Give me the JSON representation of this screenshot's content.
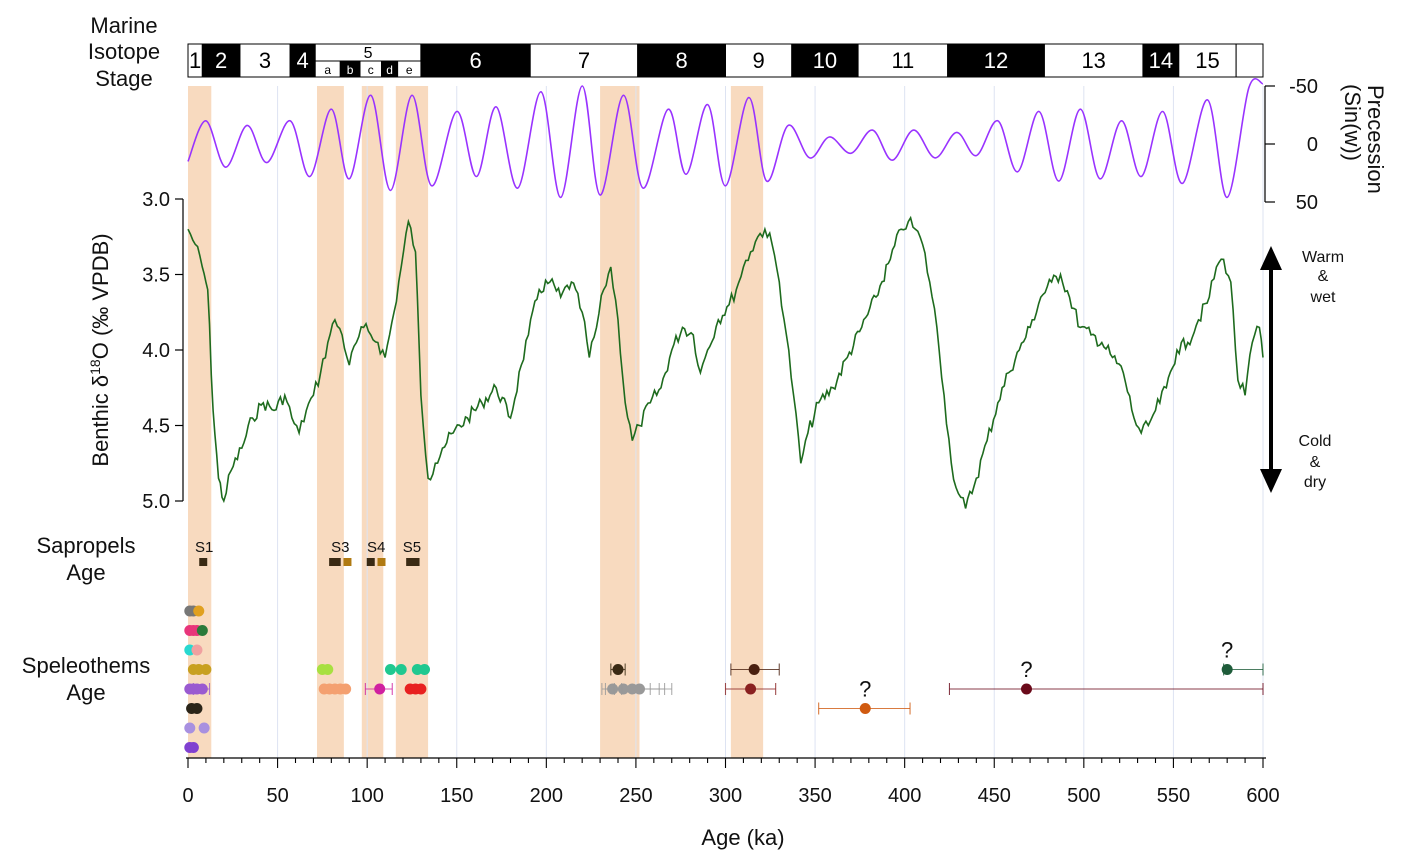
{
  "chart_data": {
    "type": "line",
    "x_axis": {
      "label": "Age (ka)",
      "range": [
        0,
        600
      ],
      "ticks": [
        0,
        50,
        100,
        150,
        200,
        250,
        300,
        350,
        400,
        450,
        500,
        550,
        600
      ],
      "tick_labels": [
        "0",
        "50",
        "100",
        "150",
        "200",
        "250",
        "300",
        "350",
        "400",
        "450",
        "500",
        "550",
        "600"
      ]
    },
    "marine_isotope_stage": {
      "label_lines": [
        "Marine",
        "Isotope",
        "Stage"
      ],
      "stages": [
        {
          "label": "1",
          "start": 0,
          "end": 8,
          "warm": true
        },
        {
          "label": "2",
          "start": 8,
          "end": 29,
          "warm": false
        },
        {
          "label": "3",
          "start": 29,
          "end": 57,
          "warm": true
        },
        {
          "label": "4",
          "start": 57,
          "end": 71,
          "warm": false
        },
        {
          "label": "5",
          "start": 71,
          "end": 130,
          "warm": true
        },
        {
          "label": "6",
          "start": 130,
          "end": 191,
          "warm": false
        },
        {
          "label": "7",
          "start": 191,
          "end": 251,
          "warm": true
        },
        {
          "label": "8",
          "start": 251,
          "end": 300,
          "warm": false
        },
        {
          "label": "9",
          "start": 300,
          "end": 337,
          "warm": true
        },
        {
          "label": "10",
          "start": 337,
          "end": 374,
          "warm": false
        },
        {
          "label": "11",
          "start": 374,
          "end": 424,
          "warm": true
        },
        {
          "label": "12",
          "start": 424,
          "end": 478,
          "warm": false
        },
        {
          "label": "13",
          "start": 478,
          "end": 533,
          "warm": true
        },
        {
          "label": "14",
          "start": 533,
          "end": 553,
          "warm": false
        },
        {
          "label": "15",
          "start": 553,
          "end": 585,
          "warm": true
        }
      ],
      "substages": [
        {
          "label": "a",
          "start": 71,
          "end": 85
        },
        {
          "label": "b",
          "start": 85,
          "end": 96
        },
        {
          "label": "c",
          "start": 96,
          "end": 108
        },
        {
          "label": "d",
          "start": 108,
          "end": 117
        },
        {
          "label": "e",
          "start": 117,
          "end": 130
        }
      ]
    },
    "highlight_bands": [
      [
        0,
        13
      ],
      [
        72,
        87
      ],
      [
        97,
        109
      ],
      [
        116,
        134
      ],
      [
        230,
        252
      ],
      [
        303,
        321
      ]
    ],
    "precession": {
      "label_lines": [
        "Precession",
        "(Sin(w))"
      ],
      "range": [
        -50,
        50
      ],
      "ticks": [
        -50,
        0,
        50
      ],
      "tick_labels": [
        "-50",
        "0",
        "50"
      ],
      "color": "#9933ff",
      "x": [
        0,
        10,
        21,
        33,
        44,
        57,
        68,
        80,
        90,
        102,
        113,
        125,
        136,
        150,
        161,
        172,
        184,
        197,
        208,
        220,
        230,
        243,
        254,
        268,
        278,
        290,
        300,
        313,
        323,
        335,
        347,
        358,
        370,
        382,
        393,
        405,
        417,
        429,
        440,
        452,
        463,
        475,
        486,
        498,
        509,
        521,
        532,
        544,
        555,
        569,
        580,
        592,
        600
      ],
      "y": [
        15,
        -20,
        20,
        -16,
        16,
        -20,
        28,
        -30,
        30,
        -42,
        40,
        -42,
        36,
        -28,
        28,
        -32,
        38,
        -45,
        46,
        -50,
        44,
        -42,
        38,
        -30,
        26,
        -34,
        36,
        -40,
        32,
        -16,
        12,
        -6,
        8,
        -12,
        14,
        -12,
        12,
        -10,
        10,
        -20,
        24,
        -28,
        32,
        -30,
        30,
        -20,
        28,
        -28,
        34,
        -38,
        46,
        -48,
        -52
      ]
    },
    "benthic": {
      "label": "Benthic δ18O (‰ VPDB)",
      "range": [
        3.0,
        5.0
      ],
      "ticks": [
        3.0,
        3.5,
        4.0,
        4.5,
        5.0
      ],
      "tick_labels": [
        "3.0",
        "3.5",
        "4.0",
        "4.5",
        "5.0"
      ],
      "color": "#1e6b1e",
      "x": [
        0,
        4,
        8,
        11,
        14,
        17,
        20,
        24,
        30,
        36,
        42,
        48,
        54,
        58,
        62,
        66,
        70,
        74,
        78,
        82,
        86,
        90,
        94,
        98,
        102,
        106,
        110,
        115,
        119,
        123,
        127,
        130,
        134,
        138,
        142,
        148,
        156,
        164,
        172,
        180,
        186,
        190,
        196,
        202,
        208,
        214,
        220,
        224,
        228,
        232,
        236,
        240,
        244,
        248,
        252,
        258,
        264,
        270,
        276,
        282,
        286,
        290,
        296,
        302,
        306,
        310,
        314,
        318,
        322,
        326,
        330,
        334,
        338,
        342,
        346,
        352,
        360,
        368,
        376,
        384,
        392,
        398,
        402,
        406,
        410,
        414,
        418,
        422,
        426,
        430,
        434,
        440,
        446,
        452,
        458,
        464,
        470,
        476,
        482,
        487,
        492,
        498,
        504,
        510,
        516,
        522,
        528,
        532,
        536,
        540,
        546,
        552,
        558,
        564,
        570,
        574,
        578,
        582,
        586,
        590,
        594,
        598,
        600
      ],
      "y": [
        3.2,
        3.3,
        3.45,
        3.6,
        4.4,
        4.85,
        5.0,
        4.8,
        4.65,
        4.45,
        4.35,
        4.4,
        4.3,
        4.45,
        4.55,
        4.4,
        4.3,
        4.15,
        3.95,
        3.8,
        3.9,
        4.1,
        3.95,
        3.85,
        3.9,
        3.95,
        4.05,
        3.75,
        3.45,
        3.15,
        3.35,
        4.3,
        4.85,
        4.75,
        4.65,
        4.55,
        4.45,
        4.35,
        4.25,
        4.45,
        4.1,
        3.9,
        3.6,
        3.55,
        3.65,
        3.55,
        3.75,
        4.05,
        3.85,
        3.6,
        3.45,
        3.8,
        4.35,
        4.6,
        4.5,
        4.35,
        4.25,
        4.0,
        3.85,
        3.9,
        4.15,
        4.0,
        3.8,
        3.7,
        3.6,
        3.45,
        3.35,
        3.25,
        3.2,
        3.3,
        3.55,
        3.9,
        4.3,
        4.75,
        4.55,
        4.35,
        4.25,
        4.05,
        3.85,
        3.65,
        3.4,
        3.2,
        3.15,
        3.2,
        3.3,
        3.55,
        3.85,
        4.3,
        4.75,
        4.95,
        5.05,
        4.85,
        4.6,
        4.35,
        4.15,
        4.0,
        3.85,
        3.65,
        3.55,
        3.5,
        3.65,
        3.85,
        3.9,
        3.95,
        4.05,
        4.15,
        4.45,
        4.55,
        4.5,
        4.4,
        4.25,
        4.0,
        3.95,
        3.8,
        3.65,
        3.45,
        3.4,
        3.55,
        4.2,
        4.3,
        3.95,
        3.85,
        4.05
      ]
    },
    "annotations": {
      "warm_lines": [
        "Warm",
        "&",
        "wet"
      ],
      "cold_lines": [
        "Cold",
        "&",
        "dry"
      ]
    },
    "sapropels": {
      "label_lines": [
        "Sapropels",
        "Age"
      ],
      "color": "#3a2a14",
      "labels": [
        {
          "text": "S1",
          "x": 9
        },
        {
          "text": "S3",
          "x": 85
        },
        {
          "text": "S4",
          "x": 105
        },
        {
          "text": "S5",
          "x": 125
        }
      ],
      "markers": [
        {
          "x": 8.5,
          "color": "#3a2a14"
        },
        {
          "x": 81,
          "color": "#3a2a14"
        },
        {
          "x": 83,
          "color": "#3a2a14"
        },
        {
          "x": 89,
          "color": "#b07a12"
        },
        {
          "x": 102,
          "color": "#3a2a14"
        },
        {
          "x": 108,
          "color": "#b07a12"
        },
        {
          "x": 124,
          "color": "#3a2a14"
        },
        {
          "x": 127,
          "color": "#3a2a14"
        }
      ]
    },
    "speleothems": {
      "label_lines": [
        "Speleothems",
        "Age"
      ],
      "question_mark": "?",
      "rows": [
        {
          "y": 0,
          "points": [
            {
              "x": 1,
              "color": "#777777"
            },
            {
              "x": 3,
              "color": "#777777"
            },
            {
              "x": 6,
              "color": "#e0a020"
            }
          ]
        },
        {
          "y": 1,
          "points": [
            {
              "x": 1,
              "color": "#e8357a"
            },
            {
              "x": 3,
              "color": "#e8357a"
            },
            {
              "x": 5,
              "color": "#e8357a"
            },
            {
              "x": 8,
              "color": "#2a7a3a"
            }
          ]
        },
        {
          "y": 2,
          "points": [
            {
              "x": 1,
              "color": "#28d8d0"
            },
            {
              "x": 5,
              "color": "#f0a0a0"
            }
          ]
        },
        {
          "y": 3,
          "points": [
            {
              "x": 3,
              "color": "#c8a020"
            },
            {
              "x": 6,
              "color": "#c8a020"
            },
            {
              "x": 10,
              "color": "#c8a020"
            },
            {
              "x": 75,
              "color": "#a8e040"
            },
            {
              "x": 78,
              "color": "#a8e040"
            },
            {
              "x": 113,
              "color": "#20c890"
            },
            {
              "x": 119,
              "color": "#20c890"
            },
            {
              "x": 128,
              "color": "#20c890"
            },
            {
              "x": 132,
              "color": "#20c890"
            },
            {
              "x": 240,
              "color": "#3a2a14",
              "err": [
                236,
                244
              ]
            },
            {
              "x": 316,
              "color": "#4a2010",
              "err": [
                303,
                330
              ]
            },
            {
              "x": 580,
              "color": "#1e5c3a",
              "err": [
                578,
                600
              ],
              "question": true
            }
          ]
        },
        {
          "y": 4,
          "points": [
            {
              "x": 1,
              "color": "#9a5ad0"
            },
            {
              "x": 3,
              "color": "#9a5ad0"
            },
            {
              "x": 5,
              "color": "#9a5ad0"
            },
            {
              "x": 8,
              "color": "#9a5ad0",
              "err": [
                3,
                12
              ]
            },
            {
              "x": 76,
              "color": "#f4a070"
            },
            {
              "x": 79,
              "color": "#f4a070"
            },
            {
              "x": 82,
              "color": "#f4a070"
            },
            {
              "x": 85,
              "color": "#f4a070"
            },
            {
              "x": 88,
              "color": "#f4a070"
            },
            {
              "x": 107,
              "color": "#d020a0",
              "err": [
                99,
                114
              ]
            },
            {
              "x": 124,
              "color": "#e82020"
            },
            {
              "x": 127,
              "color": "#e82020"
            },
            {
              "x": 130,
              "color": "#e82020"
            },
            {
              "x": 237,
              "color": "#999999",
              "err": [
                231,
                258
              ]
            },
            {
              "x": 243,
              "color": "#999999",
              "err": [
                233,
                263
              ]
            },
            {
              "x": 248,
              "color": "#999999",
              "err": [
                238,
                266
              ]
            },
            {
              "x": 252,
              "color": "#999999",
              "err": [
                242,
                270
              ]
            },
            {
              "x": 314,
              "color": "#8a2020",
              "err": [
                300,
                328
              ]
            },
            {
              "x": 468,
              "color": "#6a0a1a",
              "err": [
                425,
                600
              ],
              "question": true
            }
          ]
        },
        {
          "y": 5,
          "points": [
            {
              "x": 2,
              "color": "#2a2418"
            },
            {
              "x": 5,
              "color": "#2a2418"
            },
            {
              "x": 378,
              "color": "#d05a10",
              "err": [
                352,
                403
              ],
              "question": true
            }
          ]
        },
        {
          "y": 6,
          "points": [
            {
              "x": 1,
              "color": "#a890e0"
            },
            {
              "x": 9,
              "color": "#a890e0"
            }
          ]
        },
        {
          "y": 7,
          "points": [
            {
              "x": 1,
              "color": "#8040d0"
            },
            {
              "x": 3,
              "color": "#8040d0"
            }
          ]
        }
      ]
    }
  }
}
